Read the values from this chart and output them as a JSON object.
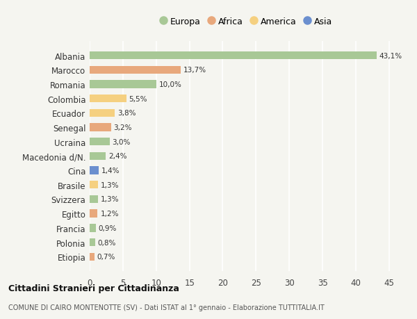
{
  "categories": [
    "Albania",
    "Marocco",
    "Romania",
    "Colombia",
    "Ecuador",
    "Senegal",
    "Ucraina",
    "Macedonia d/N.",
    "Cina",
    "Brasile",
    "Svizzera",
    "Egitto",
    "Francia",
    "Polonia",
    "Etiopia"
  ],
  "values": [
    43.1,
    13.7,
    10.0,
    5.5,
    3.8,
    3.2,
    3.0,
    2.4,
    1.4,
    1.3,
    1.3,
    1.2,
    0.9,
    0.8,
    0.7
  ],
  "labels": [
    "43,1%",
    "13,7%",
    "10,0%",
    "5,5%",
    "3,8%",
    "3,2%",
    "3,0%",
    "2,4%",
    "1,4%",
    "1,3%",
    "1,3%",
    "1,2%",
    "0,9%",
    "0,8%",
    "0,7%"
  ],
  "continents": [
    "Europa",
    "Africa",
    "Europa",
    "America",
    "America",
    "Africa",
    "Europa",
    "Europa",
    "Asia",
    "America",
    "Europa",
    "Africa",
    "Europa",
    "Europa",
    "Africa"
  ],
  "continent_colors": {
    "Europa": "#a8c896",
    "Africa": "#e8a87c",
    "America": "#f5d080",
    "Asia": "#6b8fcf"
  },
  "legend_items": [
    {
      "label": "Europa",
      "color": "#a8c896"
    },
    {
      "label": "Africa",
      "color": "#e8a87c"
    },
    {
      "label": "America",
      "color": "#f5d080"
    },
    {
      "label": "Asia",
      "color": "#6b8fcf"
    }
  ],
  "xlim": [
    0,
    47
  ],
  "xticks": [
    0,
    5,
    10,
    15,
    20,
    25,
    30,
    35,
    40,
    45
  ],
  "title1": "Cittadini Stranieri per Cittadinanza",
  "title2": "COMUNE DI CAIRO MONTENOTTE (SV) - Dati ISTAT al 1° gennaio - Elaborazione TUTTITALIA.IT",
  "background_color": "#f5f5f0",
  "grid_color": "#ffffff",
  "bar_height": 0.55
}
